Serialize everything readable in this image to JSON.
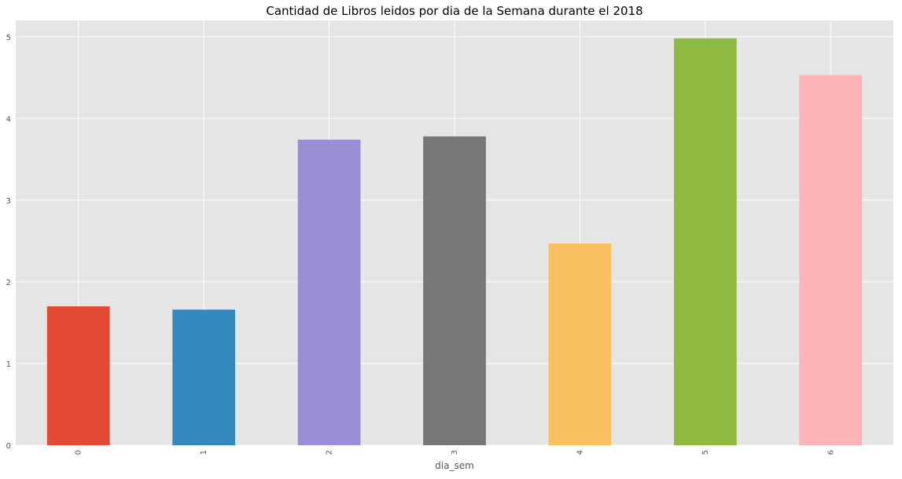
{
  "chart_data": {
    "type": "bar",
    "title": "Cantidad de Libros leidos por dia de la Semana durante el 2018",
    "xlabel": "dia_sem",
    "ylabel": "",
    "categories": [
      "0",
      "1",
      "2",
      "3",
      "4",
      "5",
      "6"
    ],
    "values": [
      1.7,
      1.66,
      3.74,
      3.78,
      2.47,
      4.98,
      4.53
    ],
    "ylim": [
      0,
      5.2
    ],
    "yticks": [
      0,
      1,
      2,
      3,
      4,
      5
    ],
    "grid": true,
    "legend": "none",
    "bar_colors": [
      "#E24A33",
      "#348ABD",
      "#988ED5",
      "#777777",
      "#FBC15E",
      "#8EBA42",
      "#FFB5B8"
    ],
    "plot_background": "#E5E5E5",
    "grid_color": "#FFFFFF",
    "tick_label_color": "#555555"
  }
}
